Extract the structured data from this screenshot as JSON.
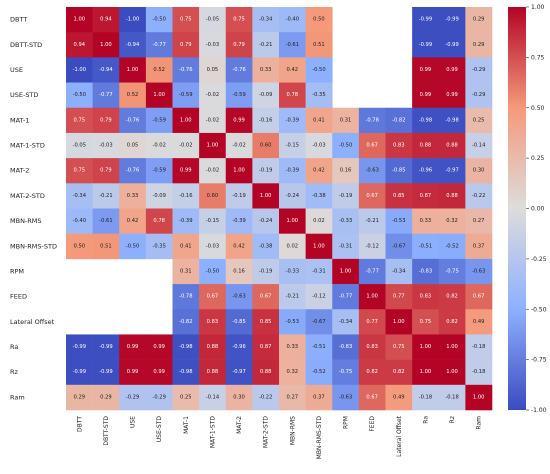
{
  "chart_data": {
    "type": "heatmap",
    "labels": [
      "DBTT",
      "DBTT-STD",
      "USE",
      "USE-STD",
      "MAT-1",
      "MAT-1-STD",
      "MAT-2",
      "MAT-2-STD",
      "MBN-RMS",
      "MBN-RMS-STD",
      "RPM",
      "FEED",
      "Lateral Offset",
      "Ra",
      "Rz",
      "Ram"
    ],
    "matrix": [
      [
        1.0,
        0.94,
        -1.0,
        -0.5,
        0.75,
        -0.05,
        0.75,
        -0.34,
        -0.4,
        0.5,
        null,
        null,
        null,
        -0.99,
        -0.99,
        0.29
      ],
      [
        0.94,
        1.0,
        -0.94,
        -0.77,
        0.79,
        -0.03,
        0.79,
        -0.21,
        -0.61,
        0.51,
        null,
        null,
        null,
        -0.99,
        -0.99,
        0.29
      ],
      [
        -1.0,
        -0.94,
        1.0,
        0.52,
        -0.76,
        0.05,
        -0.76,
        0.33,
        0.42,
        -0.5,
        null,
        null,
        null,
        0.99,
        0.99,
        -0.29
      ],
      [
        -0.5,
        -0.77,
        0.52,
        1.0,
        -0.59,
        -0.02,
        -0.59,
        -0.09,
        0.78,
        -0.35,
        null,
        null,
        null,
        0.99,
        0.99,
        -0.29
      ],
      [
        0.75,
        0.79,
        -0.76,
        -0.59,
        1.0,
        -0.02,
        0.99,
        -0.16,
        -0.39,
        0.41,
        0.31,
        -0.78,
        -0.82,
        -0.98,
        -0.98,
        0.25
      ],
      [
        -0.05,
        -0.03,
        0.05,
        -0.02,
        -0.02,
        1.0,
        -0.02,
        0.6,
        -0.15,
        -0.03,
        -0.5,
        0.67,
        0.83,
        0.88,
        0.88,
        -0.14
      ],
      [
        0.75,
        0.79,
        -0.76,
        -0.59,
        0.99,
        -0.02,
        1.0,
        -0.19,
        -0.39,
        0.42,
        0.16,
        -0.63,
        -0.85,
        -0.96,
        -0.97,
        0.3
      ],
      [
        -0.34,
        -0.21,
        0.33,
        -0.09,
        -0.16,
        0.6,
        -0.19,
        1.0,
        -0.24,
        -0.38,
        -0.19,
        0.67,
        0.85,
        0.87,
        0.88,
        -0.22
      ],
      [
        -0.4,
        -0.61,
        0.42,
        0.78,
        -0.39,
        -0.15,
        -0.39,
        -0.24,
        1.0,
        0.02,
        -0.33,
        -0.21,
        -0.53,
        0.33,
        0.32,
        0.27
      ],
      [
        0.5,
        0.51,
        -0.5,
        -0.35,
        0.41,
        -0.03,
        0.42,
        -0.38,
        0.02,
        1.0,
        -0.31,
        -0.12,
        -0.67,
        -0.51,
        -0.52,
        0.37
      ],
      [
        null,
        null,
        null,
        null,
        0.31,
        -0.5,
        0.16,
        -0.19,
        -0.33,
        -0.31,
        1.0,
        -0.77,
        -0.34,
        -0.83,
        -0.75,
        -0.63
      ],
      [
        null,
        null,
        null,
        null,
        -0.78,
        0.67,
        -0.63,
        0.67,
        -0.21,
        -0.12,
        -0.77,
        1.0,
        0.77,
        0.83,
        0.82,
        0.67
      ],
      [
        null,
        null,
        null,
        null,
        -0.82,
        0.83,
        -0.85,
        0.85,
        -0.53,
        -0.67,
        -0.34,
        0.77,
        1.0,
        0.75,
        0.82,
        0.49
      ],
      [
        -0.99,
        -0.99,
        0.99,
        0.99,
        -0.98,
        0.88,
        -0.96,
        0.87,
        0.33,
        -0.51,
        -0.83,
        0.83,
        0.75,
        1.0,
        1.0,
        -0.18
      ],
      [
        -0.99,
        -0.99,
        0.99,
        0.99,
        -0.98,
        0.88,
        -0.97,
        0.88,
        0.32,
        -0.52,
        -0.75,
        0.82,
        0.82,
        1.0,
        1.0,
        -0.18
      ],
      [
        0.29,
        0.29,
        -0.29,
        -0.29,
        0.25,
        -0.14,
        0.3,
        -0.22,
        0.27,
        0.37,
        -0.63,
        0.67,
        0.49,
        -0.18,
        -0.18,
        1.0
      ]
    ],
    "vmin": -1.0,
    "vmax": 1.0,
    "colormap": "coolwarm",
    "colorbar_ticks": [
      "1.00",
      "0.75",
      "0.50",
      "0.25",
      "0.00",
      "-0.25",
      "-0.50",
      "-0.75",
      "-1.00"
    ],
    "annotations": true,
    "legend": "colorbar-right"
  }
}
